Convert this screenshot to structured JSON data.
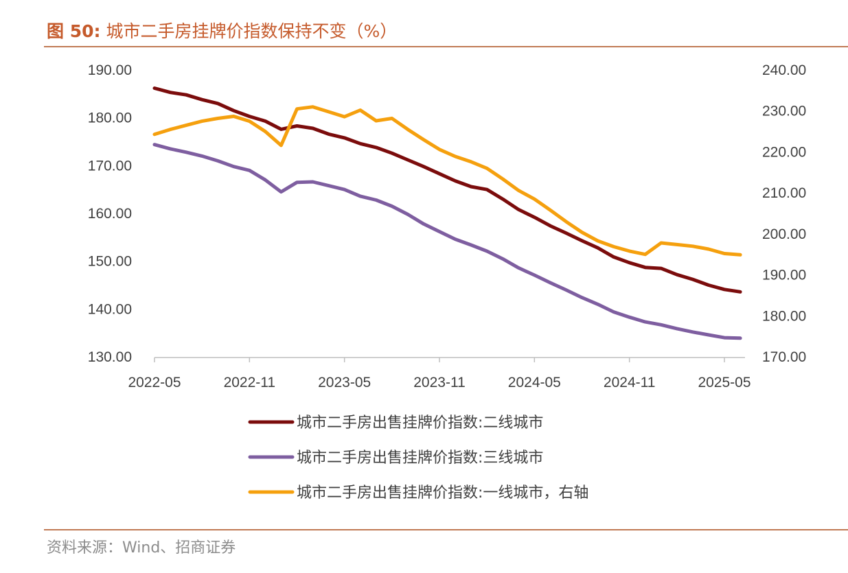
{
  "figure": {
    "label": "图 50:",
    "title": "城市二手房挂牌价指数保持不变（%）",
    "source": "资料来源：Wind、招商证券"
  },
  "chart_data": {
    "type": "line",
    "x_ticks": [
      "2022-05",
      "2022-11",
      "2023-05",
      "2023-11",
      "2024-05",
      "2024-11",
      "2025-05"
    ],
    "x_range": [
      "2022-05",
      "2025-06"
    ],
    "y_left": {
      "ticks": [
        "190.00",
        "180.00",
        "170.00",
        "160.00",
        "150.00",
        "140.00",
        "130.00"
      ],
      "range": [
        130,
        190
      ]
    },
    "y_right": {
      "ticks": [
        "240.00",
        "230.00",
        "220.00",
        "210.00",
        "200.00",
        "190.00",
        "180.00",
        "170.00"
      ],
      "range": [
        170,
        240
      ]
    },
    "grid": false,
    "legend_position": "bottom",
    "series": [
      {
        "name": "城市二手房出售挂牌价指数:二线城市",
        "axis": "left",
        "color": "#7b0c0c",
        "points": [
          [
            "2022-05",
            186.2
          ],
          [
            "2022-06",
            185.3
          ],
          [
            "2022-07",
            184.8
          ],
          [
            "2022-08",
            183.8
          ],
          [
            "2022-09",
            183.0
          ],
          [
            "2022-10",
            181.5
          ],
          [
            "2022-11",
            180.3
          ],
          [
            "2022-12",
            179.3
          ],
          [
            "2023-01",
            177.6
          ],
          [
            "2023-02",
            178.3
          ],
          [
            "2023-03",
            177.8
          ],
          [
            "2023-04",
            176.6
          ],
          [
            "2023-05",
            175.8
          ],
          [
            "2023-06",
            174.6
          ],
          [
            "2023-07",
            173.8
          ],
          [
            "2023-08",
            172.6
          ],
          [
            "2023-09",
            171.2
          ],
          [
            "2023-10",
            169.8
          ],
          [
            "2023-11",
            168.3
          ],
          [
            "2023-12",
            166.8
          ],
          [
            "2024-01",
            165.6
          ],
          [
            "2024-02",
            165.0
          ],
          [
            "2024-03",
            163.0
          ],
          [
            "2024-04",
            160.8
          ],
          [
            "2024-05",
            159.2
          ],
          [
            "2024-06",
            157.4
          ],
          [
            "2024-07",
            155.9
          ],
          [
            "2024-08",
            154.3
          ],
          [
            "2024-09",
            152.8
          ],
          [
            "2024-10",
            150.9
          ],
          [
            "2024-11",
            149.7
          ],
          [
            "2024-12",
            148.7
          ],
          [
            "2025-01",
            148.5
          ],
          [
            "2025-02",
            147.2
          ],
          [
            "2025-03",
            146.2
          ],
          [
            "2025-04",
            145.0
          ],
          [
            "2025-05",
            144.1
          ],
          [
            "2025-06",
            143.6
          ]
        ]
      },
      {
        "name": "城市二手房出售挂牌价指数:三线城市",
        "axis": "left",
        "color": "#7e5ea0",
        "points": [
          [
            "2022-05",
            174.4
          ],
          [
            "2022-06",
            173.5
          ],
          [
            "2022-07",
            172.8
          ],
          [
            "2022-08",
            172.0
          ],
          [
            "2022-09",
            171.0
          ],
          [
            "2022-10",
            169.8
          ],
          [
            "2022-11",
            169.0
          ],
          [
            "2022-12",
            167.0
          ],
          [
            "2023-01",
            164.5
          ],
          [
            "2023-02",
            166.5
          ],
          [
            "2023-03",
            166.6
          ],
          [
            "2023-04",
            165.8
          ],
          [
            "2023-05",
            165.0
          ],
          [
            "2023-06",
            163.6
          ],
          [
            "2023-07",
            162.8
          ],
          [
            "2023-08",
            161.5
          ],
          [
            "2023-09",
            159.8
          ],
          [
            "2023-10",
            157.8
          ],
          [
            "2023-11",
            156.2
          ],
          [
            "2023-12",
            154.6
          ],
          [
            "2024-01",
            153.4
          ],
          [
            "2024-02",
            152.1
          ],
          [
            "2024-03",
            150.5
          ],
          [
            "2024-04",
            148.6
          ],
          [
            "2024-05",
            147.1
          ],
          [
            "2024-06",
            145.5
          ],
          [
            "2024-07",
            144.0
          ],
          [
            "2024-08",
            142.4
          ],
          [
            "2024-09",
            141.0
          ],
          [
            "2024-10",
            139.4
          ],
          [
            "2024-11",
            138.3
          ],
          [
            "2024-12",
            137.3
          ],
          [
            "2025-01",
            136.7
          ],
          [
            "2025-02",
            135.9
          ],
          [
            "2025-03",
            135.2
          ],
          [
            "2025-04",
            134.6
          ],
          [
            "2025-05",
            134.0
          ],
          [
            "2025-06",
            133.9
          ]
        ]
      },
      {
        "name": "城市二手房出售挂牌价指数:一线城市，右轴",
        "axis": "right",
        "color": "#f5a00e",
        "points": [
          [
            "2022-05",
            224.3
          ],
          [
            "2022-06",
            225.5
          ],
          [
            "2022-07",
            226.5
          ],
          [
            "2022-08",
            227.5
          ],
          [
            "2022-09",
            228.2
          ],
          [
            "2022-10",
            228.7
          ],
          [
            "2022-11",
            227.5
          ],
          [
            "2022-12",
            225.0
          ],
          [
            "2023-01",
            221.6
          ],
          [
            "2023-02",
            230.5
          ],
          [
            "2023-03",
            231.0
          ],
          [
            "2023-04",
            229.8
          ],
          [
            "2023-05",
            228.6
          ],
          [
            "2023-06",
            230.2
          ],
          [
            "2023-07",
            227.6
          ],
          [
            "2023-08",
            228.2
          ],
          [
            "2023-09",
            225.5
          ],
          [
            "2023-10",
            223.0
          ],
          [
            "2023-11",
            220.6
          ],
          [
            "2023-12",
            218.9
          ],
          [
            "2024-01",
            217.6
          ],
          [
            "2024-02",
            216.0
          ],
          [
            "2024-03",
            213.4
          ],
          [
            "2024-04",
            210.6
          ],
          [
            "2024-05",
            208.5
          ],
          [
            "2024-06",
            205.8
          ],
          [
            "2024-07",
            203.0
          ],
          [
            "2024-08",
            200.4
          ],
          [
            "2024-09",
            198.3
          ],
          [
            "2024-10",
            196.9
          ],
          [
            "2024-11",
            195.8
          ],
          [
            "2024-12",
            195.0
          ],
          [
            "2025-01",
            197.8
          ],
          [
            "2025-02",
            197.4
          ],
          [
            "2025-03",
            197.0
          ],
          [
            "2025-04",
            196.3
          ],
          [
            "2025-05",
            195.2
          ],
          [
            "2025-06",
            194.9
          ]
        ]
      }
    ]
  }
}
